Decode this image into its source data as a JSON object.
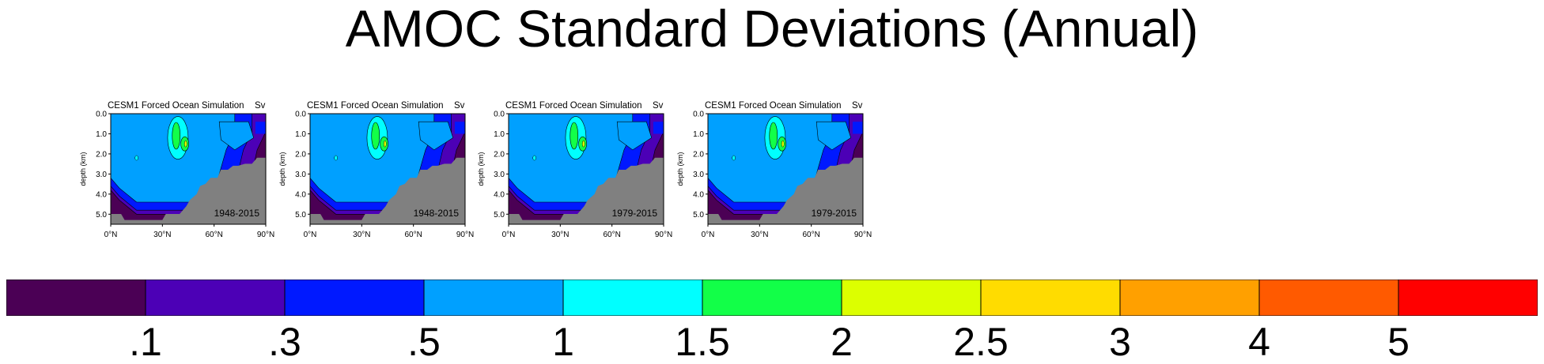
{
  "title": "AMOC Standard Deviations (Annual)",
  "chart_data": {
    "type": "heatmap",
    "panels": [
      {
        "title": "CESM1 Forced Ocean Simulation",
        "units": "Sv",
        "period": "1948-2015"
      },
      {
        "title": "CESM1 Forced Ocean Simulation",
        "units": "Sv",
        "period": "1948-2015"
      },
      {
        "title": "CESM1 Forced Ocean Simulation",
        "units": "Sv",
        "period": "1979-2015"
      },
      {
        "title": "CESM1 Forced Ocean Simulation",
        "units": "Sv",
        "period": "1979-2015"
      }
    ],
    "ylabel": "depth (km)",
    "xlim": [
      0,
      90
    ],
    "ylim": [
      5.5,
      0.0
    ],
    "x_ticks": [
      "0°N",
      "30°N",
      "60°N",
      "90°N"
    ],
    "y_ticks": [
      "0.0",
      "1.0",
      "2.0",
      "3.0",
      "4.0",
      "5.0"
    ],
    "land_color": "#808080",
    "colorbar": {
      "colors": [
        "#4b0055",
        "#4c00b6",
        "#0019ff",
        "#00a0ff",
        "#00ffff",
        "#12ff48",
        "#dcff00",
        "#ffdc00",
        "#ffa000",
        "#ff5a00",
        "#ff0000"
      ],
      "labels": [
        ".1",
        ".3",
        ".5",
        "1",
        "1.5",
        "2",
        "2.5",
        "3",
        "4",
        "5"
      ]
    }
  }
}
